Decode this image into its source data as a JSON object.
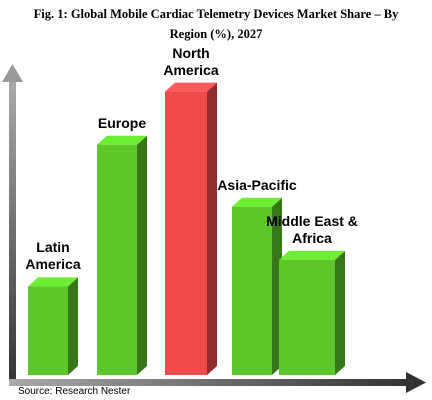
{
  "chart_data": {
    "type": "bar3d",
    "title": "Fig. 1: Global Mobile Cardiac Telemetry Devices Market Share – By Region (%), 2027",
    "categories": [
      "Latin America",
      "Europe",
      "North America",
      "Asia-Pacific",
      "Middle East & Africa"
    ],
    "values": [
      10,
      26,
      32,
      19,
      13
    ],
    "colors": [
      "#5cc62a",
      "#5cc62a",
      "#ef4b4b",
      "#5cc62a",
      "#5cc62a"
    ],
    "ylim": [
      0,
      35
    ],
    "source": "Source: Research Nester"
  }
}
